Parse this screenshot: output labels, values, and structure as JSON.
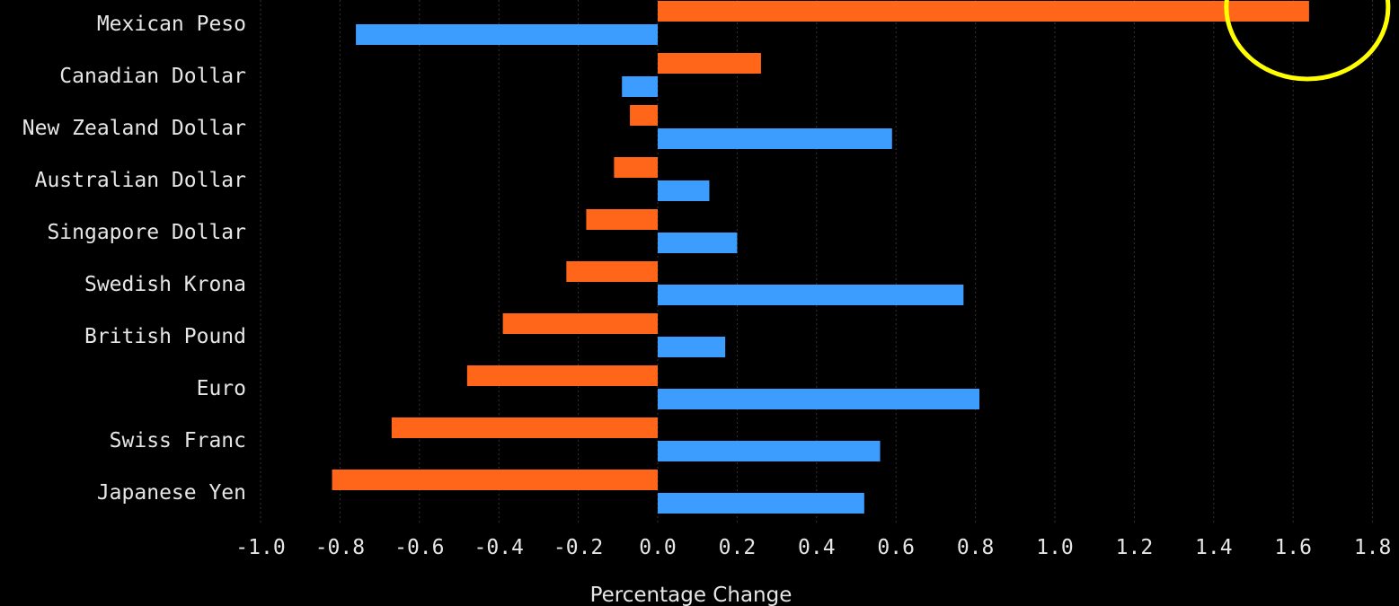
{
  "chart_data": {
    "type": "bar",
    "orientation": "horizontal",
    "categories": [
      "Mexican Peso",
      "Canadian Dollar",
      "New Zealand Dollar",
      "Australian Dollar",
      "Singapore Dollar",
      "Swedish Krona",
      "British Pound",
      "Euro",
      "Swiss Franc",
      "Japanese Yen"
    ],
    "series": [
      {
        "color": "#ff6619",
        "values": [
          1.64,
          0.26,
          -0.07,
          -0.11,
          -0.18,
          -0.23,
          -0.39,
          -0.48,
          -0.67,
          -0.82
        ]
      },
      {
        "color": "#3d9dff",
        "values": [
          -0.76,
          -0.09,
          0.59,
          0.13,
          0.2,
          0.77,
          0.17,
          0.81,
          0.56,
          0.52
        ]
      }
    ],
    "xlabel": "Percentage Change",
    "ylabel": "",
    "xlim": [
      -1.0,
      1.8
    ],
    "xticks": [
      "-1.0",
      "-0.8",
      "-0.6",
      "-0.4",
      "-0.2",
      "0.0",
      "0.2",
      "0.4",
      "0.6",
      "0.8",
      "1.0",
      "1.2",
      "1.4",
      "1.6",
      "1.8"
    ],
    "grid": "vertical-dotted",
    "annotation": {
      "shape": "circle",
      "color": "#ffff00",
      "target": "Mexican Peso bar end"
    }
  }
}
